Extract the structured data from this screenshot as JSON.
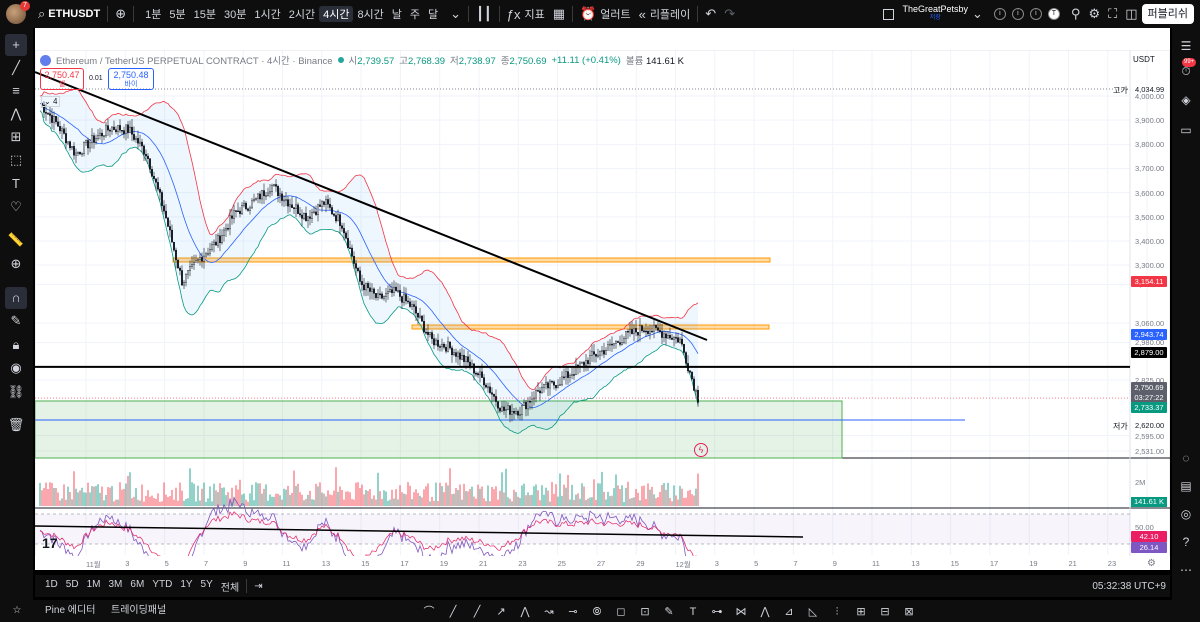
{
  "topbar": {
    "avatar_badge": "7",
    "symbol": "ETHUSDT",
    "timeframes": [
      "1분",
      "5분",
      "15분",
      "30분",
      "1시간",
      "2시간",
      "4시간",
      "8시간",
      "날",
      "주",
      "달"
    ],
    "active_timeframe": "4시간",
    "indicators_label": "지표",
    "alert_label": "얼러트",
    "replay_label": "리플레이",
    "username": "TheGreatPetsby",
    "username_sub": "저장",
    "publish_label": "퍼블리쉬",
    "mini_badges": [
      "i",
      "i",
      "i",
      "T"
    ]
  },
  "legend": {
    "symbol_name": "Ethereum / TetherUS PERPETUAL CONTRACT · 4시간 · Binance",
    "open_label": "시",
    "open": "2,739.57",
    "high_label": "고",
    "high": "2,768.39",
    "low_label": "저",
    "low": "2,738.97",
    "close_label": "종",
    "close": "2,750.69",
    "change": "+11.11 (+0.41%)",
    "volume_label": "볼륨",
    "volume": "141.61 K",
    "sell_price": "2,750.47",
    "sell_label": "셀",
    "buy_price": "2,750.48",
    "buy_label": "바이",
    "spread": "0.01",
    "collapse_count": "4",
    "currency": "USDT"
  },
  "price_scale": {
    "high_label": "고가",
    "high_value": "4,034.99",
    "low_label": "저가",
    "low_value": "2,620.00",
    "levels": [
      "4,000.00",
      "3,900.00",
      "3,800.00",
      "3,700.00",
      "3,600.00",
      "3,500.00",
      "3,400.00",
      "3,300.00",
      "3,220.00",
      "3,060.00",
      "2,980.00",
      "2,825.00",
      "2,595.00",
      "2,531.00"
    ],
    "tags": {
      "bb_upper": "3,154.11",
      "bb_mid": "2,943.74",
      "hline": "2,879.00",
      "last": "2,750.69",
      "countdown": "03:27:22",
      "bb_lower": "2,733.37",
      "volume": "141.61 K",
      "vol_scale": "2M",
      "rsi_a": "42.10",
      "rsi_b": "26.14",
      "rsi_level": "50.00"
    },
    "colors": {
      "up": "#089981",
      "down": "#f23645",
      "hline": "#000000",
      "mid": "#2962ff"
    }
  },
  "chart_data": {
    "type": "candlestick",
    "x": [
      "11월",
      "3",
      "5",
      "7",
      "9",
      "11",
      "13",
      "15",
      "17",
      "19",
      "21",
      "23",
      "25",
      "27",
      "29",
      "12월",
      "3",
      "5",
      "7",
      "9",
      "11",
      "13",
      "15",
      "17",
      "19",
      "21",
      "23"
    ],
    "ylim": [
      2531,
      4034.99
    ],
    "close_path": [
      3970,
      3880,
      3760,
      3820,
      3870,
      3860,
      3760,
      3520,
      3230,
      3330,
      3400,
      3520,
      3560,
      3630,
      3560,
      3500,
      3560,
      3470,
      3230,
      3160,
      3190,
      3120,
      2990,
      2960,
      2900,
      2820,
      2700,
      2700,
      2780,
      2810,
      2860,
      2920,
      2960,
      3010,
      3040,
      3020,
      2990,
      2750
    ],
    "horizontal_levels": [
      2879.0,
      3200,
      2990
    ],
    "trendline": [
      [
        4034,
        3880
      ],
      [
        2940,
        2940
      ]
    ],
    "volume": "141.61 K",
    "rsi": [
      42.1,
      26.14
    ]
  },
  "range_bar": {
    "ranges": [
      "1D",
      "5D",
      "1M",
      "3M",
      "6M",
      "YTD",
      "1Y",
      "5Y",
      "전체"
    ],
    "clock": "05:32:38 UTC+9"
  },
  "bottom": {
    "tabs": [
      "Pine 에디터",
      "트레이딩패널"
    ]
  },
  "right": {
    "notif_badge": "99+"
  }
}
